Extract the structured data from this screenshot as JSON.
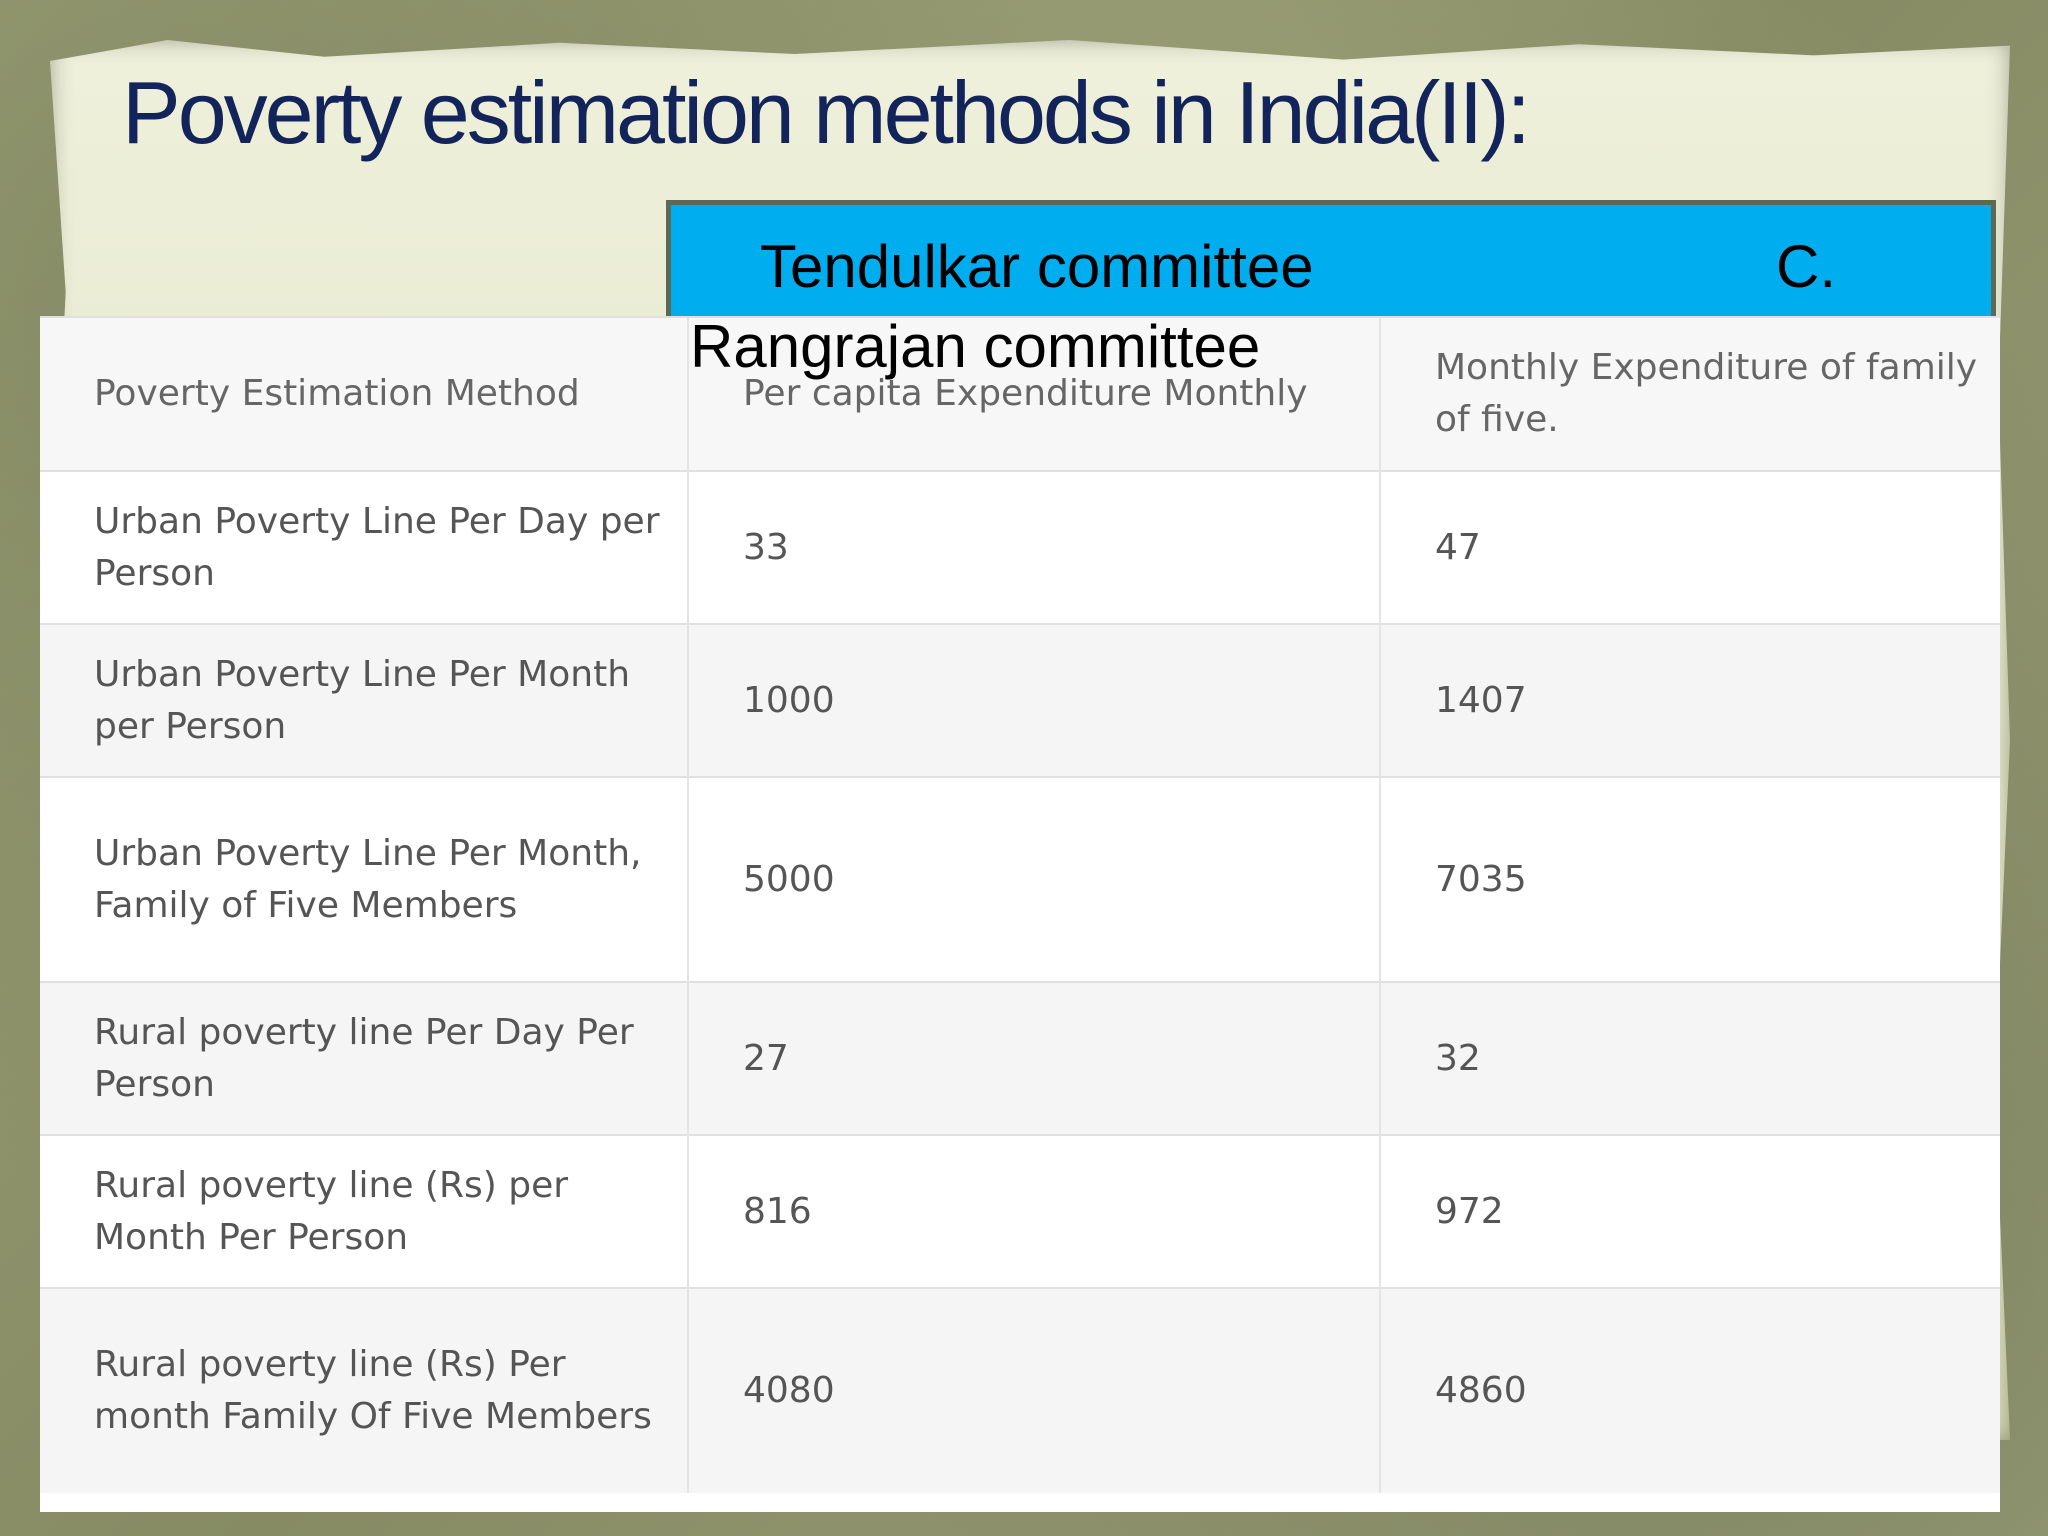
{
  "slide": {
    "title": "Poverty estimation methods in India(II):"
  },
  "banner": {
    "left_text": "Tendulkar  committee",
    "right_text": "C.",
    "overflow_text": "Rangrajan committee",
    "color": "#00aeef"
  },
  "table": {
    "headers": [
      "Poverty Estimation Method",
      "Per capita Expenditure Monthly",
      "Monthly Expenditure of family of five."
    ],
    "rows": [
      [
        "Urban Poverty Line Per Day per Person",
        "33",
        "47"
      ],
      [
        "Urban Poverty Line Per Month per Person",
        "1000",
        "1407"
      ],
      [
        "Urban Poverty Line Per Month, Family of Five Members",
        "5000",
        "7035"
      ],
      [
        "Rural poverty line Per Day Per Person",
        "27",
        "32"
      ],
      [
        "Rural poverty line (Rs) per Month Per Person",
        "816",
        "972"
      ],
      [
        "Rural poverty line (Rs) Per month Family Of Five Members",
        "4080",
        "4860"
      ]
    ]
  }
}
